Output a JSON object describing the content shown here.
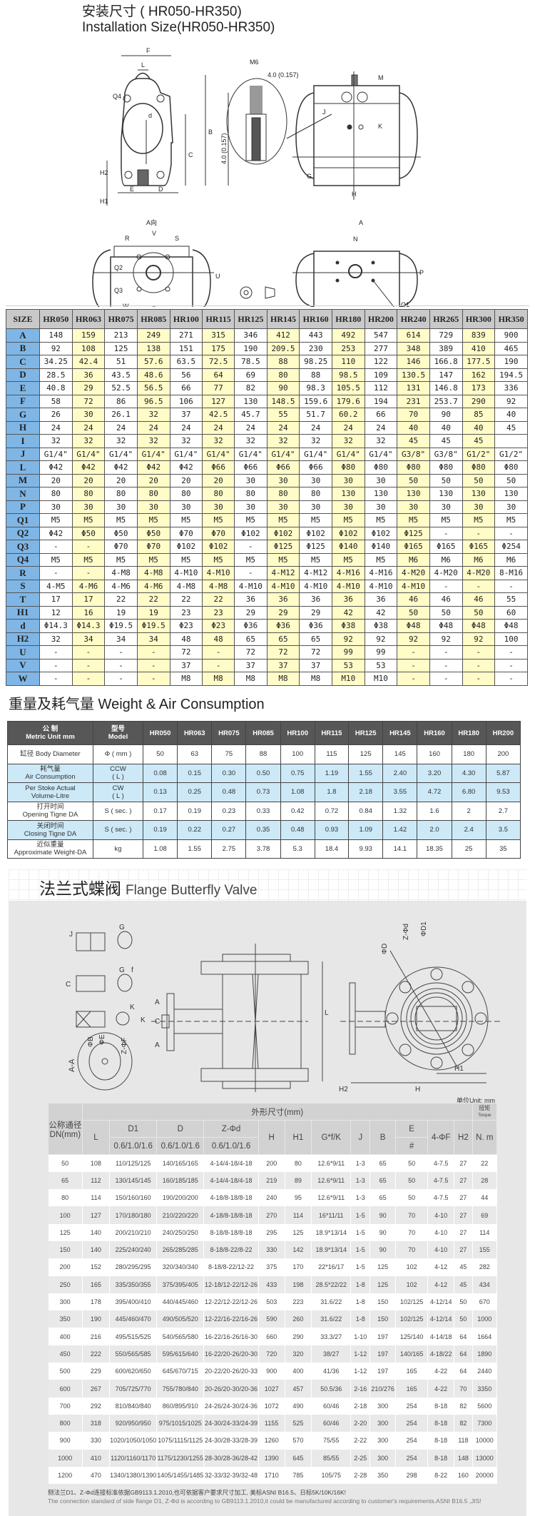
{
  "install": {
    "title_cn": "安装尺寸 ( HR050-HR350)",
    "title_en": "Installation Size(HR050-HR350)",
    "labels": {
      "F": "F",
      "L": "L",
      "M6": "M6",
      "dim4": "4.0 (0.157)",
      "dim4v": "4.0 (0.157)",
      "M": "M",
      "B": "B",
      "C": "C",
      "d": "d",
      "H2": "H2",
      "H1": "H1",
      "E": "E",
      "D": "D",
      "G": "G",
      "H": "H",
      "J": "J",
      "Q4": "Q4",
      "K": "K",
      "Aview": "A向",
      "Aarrow": "A",
      "V": "V",
      "R": "R",
      "S": "S",
      "Q2": "Q2",
      "Q3": "Q3",
      "W": "W",
      "T": "T",
      "A": "A",
      "U": "U",
      "N": "N",
      "P": "P",
      "Q1": "Q1"
    }
  },
  "size_table": {
    "header": [
      "SIZE",
      "HR050",
      "HR063",
      "HR075",
      "HR085",
      "HR100",
      "HR115",
      "HR125",
      "HR145",
      "HR160",
      "HR180",
      "HR200",
      "HR240",
      "HR265",
      "HR300",
      "HR350"
    ],
    "rows": [
      [
        "A",
        "148",
        "159",
        "213",
        "249",
        "271",
        "315",
        "346",
        "412",
        "443",
        "492",
        "547",
        "614",
        "729",
        "839",
        "900"
      ],
      [
        "B",
        "92",
        "108",
        "125",
        "138",
        "151",
        "175",
        "190",
        "209.5",
        "230",
        "253",
        "277",
        "348",
        "389",
        "410",
        "465"
      ],
      [
        "C",
        "34.25",
        "42.4",
        "51",
        "57.6",
        "63.5",
        "72.5",
        "78.5",
        "88",
        "98.25",
        "110",
        "122",
        "146",
        "166.8",
        "177.5",
        "190"
      ],
      [
        "D",
        "28.5",
        "36",
        "43.5",
        "48.6",
        "56",
        "64",
        "69",
        "80",
        "88",
        "98.5",
        "109",
        "130.5",
        "147",
        "162",
        "194.5"
      ],
      [
        "E",
        "40.8",
        "29",
        "52.5",
        "56.5",
        "66",
        "77",
        "82",
        "90",
        "98.3",
        "105.5",
        "112",
        "131",
        "146.8",
        "173",
        "336"
      ],
      [
        "F",
        "58",
        "72",
        "86",
        "96.5",
        "106",
        "127",
        "130",
        "148.5",
        "159.6",
        "179.6",
        "194",
        "231",
        "253.7",
        "290",
        "92"
      ],
      [
        "G",
        "26",
        "30",
        "26.1",
        "32",
        "37",
        "42.5",
        "45.7",
        "55",
        "51.7",
        "60.2",
        "66",
        "70",
        "90",
        "85",
        "40"
      ],
      [
        "H",
        "24",
        "24",
        "24",
        "24",
        "24",
        "24",
        "24",
        "24",
        "24",
        "24",
        "24",
        "40",
        "40",
        "40",
        "45"
      ],
      [
        "I",
        "32",
        "32",
        "32",
        "32",
        "32",
        "32",
        "32",
        "32",
        "32",
        "32",
        "32",
        "45",
        "45",
        "45",
        ""
      ],
      [
        "J",
        "G1/4\"",
        "G1/4\"",
        "G1/4\"",
        "G1/4\"",
        "G1/4\"",
        "G1/4\"",
        "G1/4\"",
        "G1/4\"",
        "G1/4\"",
        "G1/4\"",
        "G1/4\"",
        "G3/8\"",
        "G3/8\"",
        "G1/2\"",
        "G1/2\""
      ],
      [
        "L",
        "Φ42",
        "Φ42",
        "Φ42",
        "Φ42",
        "Φ42",
        "Φ66",
        "Φ66",
        "Φ66",
        "Φ66",
        "Φ80",
        "Φ80",
        "Φ80",
        "Φ80",
        "Φ80",
        "Φ80"
      ],
      [
        "M",
        "20",
        "20",
        "20",
        "20",
        "20",
        "20",
        "30",
        "30",
        "30",
        "30",
        "30",
        "50",
        "50",
        "50",
        "50"
      ],
      [
        "N",
        "80",
        "80",
        "80",
        "80",
        "80",
        "80",
        "80",
        "80",
        "80",
        "130",
        "130",
        "130",
        "130",
        "130",
        "130"
      ],
      [
        "P",
        "30",
        "30",
        "30",
        "30",
        "30",
        "30",
        "30",
        "30",
        "30",
        "30",
        "30",
        "30",
        "30",
        "30",
        "30"
      ],
      [
        "Q1",
        "M5",
        "M5",
        "M5",
        "M5",
        "M5",
        "M5",
        "M5",
        "M5",
        "M5",
        "M5",
        "M5",
        "M5",
        "M5",
        "M5",
        "M5"
      ],
      [
        "Q2",
        "Φ42",
        "Φ50",
        "Φ50",
        "Φ50",
        "Φ70",
        "Φ70",
        "Φ102",
        "Φ102",
        "Φ102",
        "Φ102",
        "Φ102",
        "Φ125",
        "-",
        "-",
        "-"
      ],
      [
        "Q3",
        "-",
        "-",
        "Φ70",
        "Φ70",
        "Φ102",
        "Φ102",
        "-",
        "Φ125",
        "Φ125",
        "Φ140",
        "Φ140",
        "Φ165",
        "Φ165",
        "Φ165",
        "Φ254"
      ],
      [
        "Q4",
        "M5",
        "M5",
        "M5",
        "M5",
        "M5",
        "M5",
        "M5",
        "M5",
        "M5",
        "M5",
        "M5",
        "M6",
        "M6",
        "M6",
        "M6"
      ],
      [
        "R",
        "-",
        "-",
        "4-M8",
        "4-M8",
        "4-M10",
        "4-M10",
        "-",
        "4-M12",
        "4-M12",
        "4-M16",
        "4-M16",
        "4-M20",
        "4-M20",
        "4-M20",
        "8-M16"
      ],
      [
        "S",
        "4-M5",
        "4-M6",
        "4-M6",
        "4-M6",
        "4-M8",
        "4-M8",
        "4-M10",
        "4-M10",
        "4-M10",
        "4-M10",
        "4-M10",
        "4-M10",
        "-",
        "-",
        "-"
      ],
      [
        "T",
        "17",
        "17",
        "22",
        "22",
        "22",
        "22",
        "36",
        "36",
        "36",
        "36",
        "36",
        "46",
        "46",
        "46",
        "55"
      ],
      [
        "H1",
        "12",
        "16",
        "19",
        "19",
        "23",
        "23",
        "29",
        "29",
        "29",
        "42",
        "42",
        "50",
        "50",
        "50",
        "60"
      ],
      [
        "d",
        "Φ14.3",
        "Φ14.3",
        "Φ19.5",
        "Φ19.5",
        "Φ23",
        "Φ23",
        "Φ36",
        "Φ36",
        "Φ36",
        "Φ38",
        "Φ38",
        "Φ48",
        "Φ48",
        "Φ48",
        "Φ48"
      ],
      [
        "H2",
        "32",
        "34",
        "34",
        "34",
        "48",
        "48",
        "65",
        "65",
        "65",
        "92",
        "92",
        "92",
        "92",
        "92",
        "100"
      ],
      [
        "U",
        "-",
        "-",
        "-",
        "-",
        "72",
        "-",
        "72",
        "72",
        "72",
        "99",
        "99",
        "-",
        "-",
        "-",
        "-"
      ],
      [
        "V",
        "-",
        "-",
        "-",
        "-",
        "37",
        "-",
        "37",
        "37",
        "37",
        "53",
        "53",
        "-",
        "-",
        "-",
        "-"
      ],
      [
        "W",
        "-",
        "-",
        "-",
        "-",
        "M8",
        "M8",
        "M8",
        "M8",
        "M8",
        "M10",
        "M10",
        "-",
        "-",
        "-",
        "-"
      ]
    ]
  },
  "weight": {
    "title": "重量及耗气量 Weight & Air Consumption",
    "header": [
      [
        "公 制",
        "Metric Unit mm"
      ],
      [
        "型号",
        "Model"
      ],
      "HR050",
      "HR063",
      "HR075",
      "HR085",
      "HR100",
      "HR115",
      "HR125",
      "HR145",
      "HR160",
      "HR180",
      "HR200"
    ],
    "rows": [
      {
        "label": [
          "缸径 Body Diameter"
        ],
        "unit": [
          "Φ ( mm )"
        ],
        "values": [
          "50",
          "63",
          "75",
          "88",
          "100",
          "115",
          "125",
          "145",
          "160",
          "180",
          "200"
        ],
        "blue": false
      },
      {
        "label": [
          "耗气量",
          "Air Consumption"
        ],
        "unit": [
          "CCW",
          "( L )"
        ],
        "values": [
          "0.08",
          "0.15",
          "0.30",
          "0.50",
          "0.75",
          "1.19",
          "1.55",
          "2.40",
          "3.20",
          "4.30",
          "5.87"
        ],
        "blue": true
      },
      {
        "label": [
          "Per Stoke Actual",
          "Volume-Litre"
        ],
        "unit": [
          "CW",
          "( L )"
        ],
        "values": [
          "0.13",
          "0.25",
          "0.48",
          "0.73",
          "1.08",
          "1.8",
          "2.18",
          "3.55",
          "4.72",
          "6.80",
          "9.53"
        ],
        "blue": true
      },
      {
        "label": [
          "打开时间",
          "Opening Tigne DA"
        ],
        "unit": [
          "S ( sec. )"
        ],
        "values": [
          "0.17",
          "0.19",
          "0.23",
          "0.33",
          "0.42",
          "0.72",
          "0.84",
          "1.32",
          "1.6",
          "2",
          "2.7"
        ],
        "blue": false
      },
      {
        "label": [
          "关闭时间",
          "Closing Tigne DA"
        ],
        "unit": [
          "S ( sec. )"
        ],
        "values": [
          "0.19",
          "0.22",
          "0.27",
          "0.35",
          "0.48",
          "0.93",
          "1.09",
          "1.42",
          "2.0",
          "2.4",
          "3.5"
        ],
        "blue": true
      },
      {
        "label": [
          "近似重量",
          "Approximate Weight-DA"
        ],
        "unit": [
          "kg"
        ],
        "values": [
          "1.08",
          "1.55",
          "2.75",
          "3.78",
          "5.3",
          "18.4",
          "9.93",
          "14.1",
          "18.35",
          "25",
          "35"
        ],
        "blue": false
      }
    ],
    "colors": {
      "header": "#575757",
      "blue_row": "#cde9f7"
    }
  },
  "flange": {
    "title_cn": "法兰式蝶阀",
    "title_en": "Flange Butterfly Valve",
    "labels": {
      "J": "J",
      "G1": "G",
      "G2": "G",
      "f": "f",
      "C1": "C",
      "K1": "K",
      "K2": "K",
      "A1": "A",
      "A2": "A",
      "C2": "C",
      "AA": "A-A",
      "PB": "ΦB",
      "PE": "ΦE",
      "ZF": "Z-ΦF",
      "L": "L",
      "PD": "ΦD",
      "ZD": "Z-Φd",
      "PD1": "ΦD1",
      "H1": "H1",
      "H": "H",
      "H2": "H2"
    },
    "unit": "单位Unit: mm",
    "head": {
      "dn": [
        "公称通径",
        "DN(mm)"
      ],
      "group": "外形尺寸(mm)",
      "torque": [
        "扭矩",
        "Torque"
      ],
      "L": "L",
      "D1": "D1",
      "D": "D",
      "Z": "Z-Φd",
      "pn1": "0.6/1.0/1.6",
      "pn2": "0.6/1.0/1.6",
      "pn3": "0.6/1.0/1.6",
      "H": "H",
      "H1": "H1",
      "G": "G*f/K",
      "J": "J",
      "B": "B",
      "E": "E",
      "Esub": "#",
      "F": "4-ΦF",
      "H2": "H2",
      "Nm": "N. m"
    },
    "rows": [
      [
        "50",
        "108",
        "110/125/125",
        "140/165/165",
        "4-14/4-18/4-18",
        "200",
        "80",
        "12.6*9/11",
        "1-3",
        "65",
        "50",
        "4-7.5",
        "27",
        "22"
      ],
      [
        "65",
        "112",
        "130/145/145",
        "160/185/185",
        "4-14/4-18/4-18",
        "219",
        "89",
        "12.6*9/11",
        "1-3",
        "65",
        "50",
        "4-7.5",
        "27",
        "28"
      ],
      [
        "80",
        "114",
        "150/160/160",
        "190/200/200",
        "4-18/8-18/8-18",
        "240",
        "95",
        "12.6*9/11",
        "1-3",
        "65",
        "50",
        "4-7.5",
        "27",
        "44"
      ],
      [
        "100",
        "127",
        "170/180/180",
        "210/220/220",
        "4-18/8-18/8-18",
        "270",
        "114",
        "16*11/11",
        "1-5",
        "90",
        "70",
        "4-10",
        "27",
        "69"
      ],
      [
        "125",
        "140",
        "200/210/210",
        "240/250/250",
        "8-18/8-18/8-18",
        "295",
        "125",
        "18.9*13/14",
        "1-5",
        "90",
        "70",
        "4-10",
        "27",
        "114"
      ],
      [
        "150",
        "140",
        "225/240/240",
        "265/285/285",
        "8-18/8-22/8-22",
        "330",
        "142",
        "18.9*13/14",
        "1-5",
        "90",
        "70",
        "4-10",
        "27",
        "155"
      ],
      [
        "200",
        "152",
        "280/295/295",
        "320/340/340",
        "8-18/8-22/12-22",
        "375",
        "170",
        "22*16/17",
        "1-5",
        "125",
        "102",
        "4-12",
        "45",
        "282"
      ],
      [
        "250",
        "165",
        "335/350/355",
        "375/395/405",
        "12-18/12-22/12-26",
        "433",
        "198",
        "28.5*22/22",
        "1-8",
        "125",
        "102",
        "4-12",
        "45",
        "434"
      ],
      [
        "300",
        "178",
        "395/400/410",
        "440/445/460",
        "12-22/12-22/12-26",
        "503",
        "223",
        "31.6/22",
        "1-8",
        "150",
        "102/125",
        "4-12/14",
        "50",
        "670"
      ],
      [
        "350",
        "190",
        "445/460/470",
        "490/505/520",
        "12-22/16-22/16-26",
        "590",
        "260",
        "31.6/22",
        "1-8",
        "150",
        "102/125",
        "4-12/14",
        "50",
        "1000"
      ],
      [
        "400",
        "216",
        "495/515/525",
        "540/565/580",
        "16-22/16-26/16-30",
        "660",
        "290",
        "33.3/27",
        "1-10",
        "197",
        "125/140",
        "4-14/18",
        "64",
        "1664"
      ],
      [
        "450",
        "222",
        "550/565/585",
        "595/615/640",
        "16-22/20-26/20-30",
        "720",
        "320",
        "38/27",
        "1-12",
        "197",
        "140/165",
        "4-18/22",
        "64",
        "1890"
      ],
      [
        "500",
        "229",
        "600/620/650",
        "645/670/715",
        "20-22/20-26/20-33",
        "900",
        "400",
        "41/36",
        "1-12",
        "197",
        "165",
        "4-22",
        "64",
        "2440"
      ],
      [
        "600",
        "267",
        "705/725/770",
        "755/780/840",
        "20-26/20-30/20-36",
        "1027",
        "457",
        "50.5/36",
        "2-16",
        "210/276",
        "165",
        "4-22",
        "70",
        "3350"
      ],
      [
        "700",
        "292",
        "810/840/840",
        "860/895/910",
        "24-26/24-30/24-36",
        "1072",
        "490",
        "60/46",
        "2-18",
        "300",
        "254",
        "8-18",
        "82",
        "5600"
      ],
      [
        "800",
        "318",
        "920/950/950",
        "975/1015/1025",
        "24-30/24-33/24-39",
        "1155",
        "525",
        "60/46",
        "2-20",
        "300",
        "254",
        "8-18",
        "82",
        "7300"
      ],
      [
        "900",
        "330",
        "1020/1050/1050",
        "1075/1115/1125",
        "24-30/28-33/28-39",
        "1260",
        "570",
        "75/55",
        "2-22",
        "300",
        "254",
        "8-18",
        "118",
        "10000"
      ],
      [
        "1000",
        "410",
        "1120/1160/1170",
        "1175/1230/1255",
        "28-30/28-36/28-42",
        "1390",
        "645",
        "85/55",
        "2-25",
        "300",
        "254",
        "8-18",
        "148",
        "13000"
      ],
      [
        "1200",
        "470",
        "1340/1380/1390",
        "1405/1455/1485",
        "32-33/32-39/32-48",
        "1710",
        "785",
        "105/75",
        "2-28",
        "350",
        "298",
        "8-22",
        "160",
        "20000"
      ]
    ],
    "note_cn": "侧法兰D1、Z-Φd连接标准依据GB9113.1.2010,也可依据客户要求尺寸加工, 美标ASNI B16.5、日标5K/10K/16K!",
    "note_en": "The connection standard of side flange D1, Z-Φd is according to GB9113.1.2010,it could be manufactured according to customer's requirements.ASNI B16.5 ,JIS!"
  },
  "colors": {
    "size_header": "#c9c9c9",
    "size_label": "#7fb6e6",
    "size_highlight": "#fffcc8",
    "flange_bg": "#e7e7e7"
  }
}
